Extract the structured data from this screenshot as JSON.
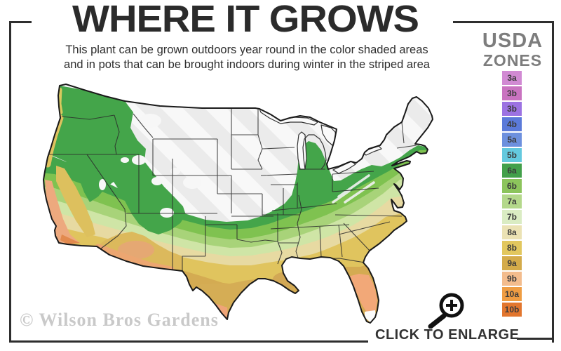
{
  "title": "WHERE IT GROWS",
  "subtitle": {
    "line1": "This plant can be grown outdoors year round in the color shaded areas",
    "line2": "and in pots that can be brought indoors during winter in the striped area"
  },
  "legend": {
    "title_line1": "USDA",
    "title_line2": "ZONES",
    "zones": [
      {
        "label": "3a",
        "color": "#d18ad3"
      },
      {
        "label": "3b",
        "color": "#c973c0"
      },
      {
        "label": "3b",
        "color": "#9c72e2"
      },
      {
        "label": "4b",
        "color": "#5b7ad9"
      },
      {
        "label": "5a",
        "color": "#6d90de"
      },
      {
        "label": "5b",
        "color": "#64c9de"
      },
      {
        "label": "6a",
        "color": "#42a04a"
      },
      {
        "label": "6b",
        "color": "#8cc45c"
      },
      {
        "label": "7a",
        "color": "#b4d88b"
      },
      {
        "label": "7b",
        "color": "#daecc3"
      },
      {
        "label": "8a",
        "color": "#ebe2b4"
      },
      {
        "label": "8b",
        "color": "#e2c75e"
      },
      {
        "label": "9a",
        "color": "#d4ab4a"
      },
      {
        "label": "9b",
        "color": "#f3bc8d"
      },
      {
        "label": "10a",
        "color": "#ef9d43"
      },
      {
        "label": "10b",
        "color": "#e2762e"
      }
    ]
  },
  "map": {
    "kind": "usda-zones-usa-map",
    "accent_colors": {
      "non_growing_stripe": "#eeeeee",
      "zone_green": "#44a54a",
      "zone_gold": "#e0c45e",
      "zone_peach": "#f0a878",
      "coast_salmon": "#eda97e"
    }
  },
  "watermark": "© Wilson Bros Gardens",
  "enlarge": {
    "label": "CLICK TO ENLARGE"
  }
}
